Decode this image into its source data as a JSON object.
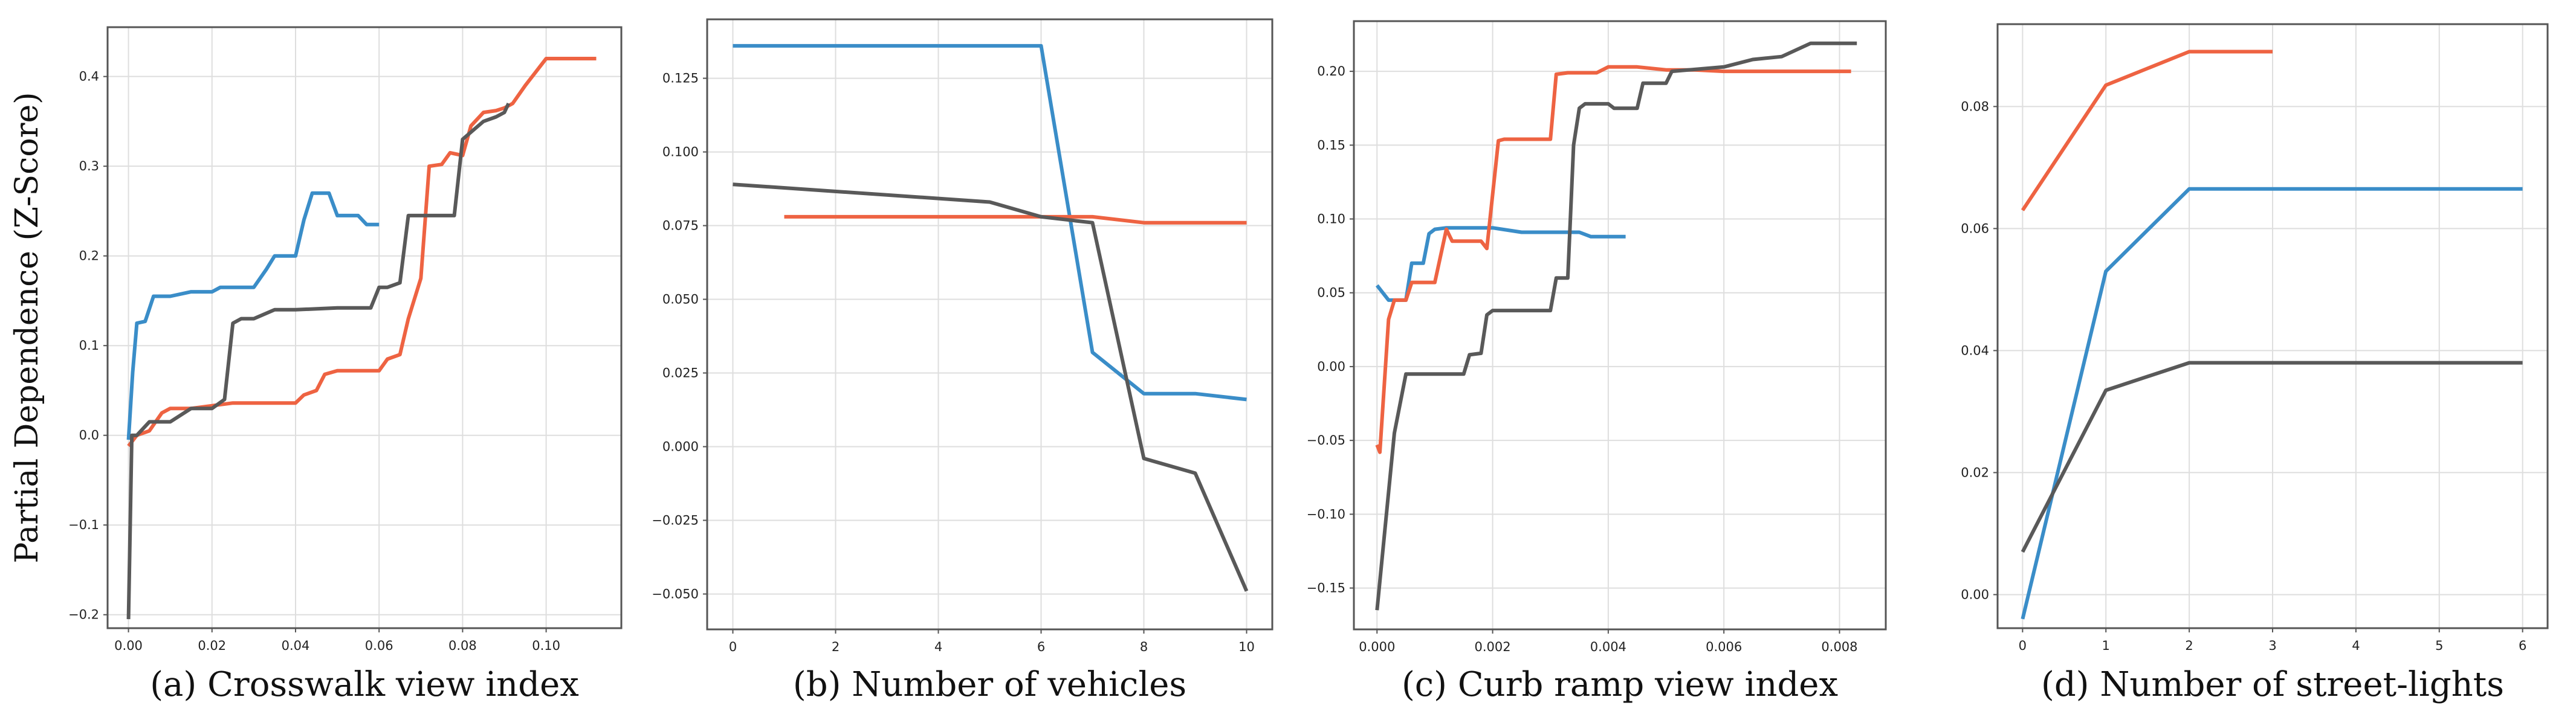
{
  "colors": {
    "blue": "#3a8dc8",
    "orange": "#ee6342",
    "gray": "#595959",
    "grid": "#dedede",
    "frame": "#555555"
  },
  "chart_data": [
    {
      "type": "line",
      "title": "",
      "xlabel": "(a) Crosswalk view index",
      "ylabel": "Partial Dependence (Z-Score)",
      "xlim": [
        -0.005,
        0.118
      ],
      "ylim": [
        -0.215,
        0.455
      ],
      "xticks": [
        0.0,
        0.02,
        0.04,
        0.06,
        0.08,
        0.1
      ],
      "xtick_labels": [
        "0.00",
        "0.02",
        "0.04",
        "0.06",
        "0.08",
        "0.10"
      ],
      "yticks": [
        -0.2,
        -0.1,
        0.0,
        0.1,
        0.2,
        0.3,
        0.4
      ],
      "ytick_labels": [
        "−0.2",
        "−0.1",
        "0.0",
        "0.1",
        "0.2",
        "0.3",
        "0.4"
      ],
      "series": [
        {
          "name": "blue",
          "color": "#3a8dc8",
          "x": [
            0.0,
            0.001,
            0.002,
            0.004,
            0.006,
            0.008,
            0.01,
            0.015,
            0.02,
            0.022,
            0.03,
            0.033,
            0.035,
            0.04,
            0.042,
            0.044,
            0.048,
            0.05,
            0.055,
            0.057,
            0.06
          ],
          "y": [
            -0.005,
            0.07,
            0.125,
            0.127,
            0.155,
            0.155,
            0.155,
            0.16,
            0.16,
            0.165,
            0.165,
            0.185,
            0.2,
            0.2,
            0.24,
            0.27,
            0.27,
            0.245,
            0.245,
            0.235,
            0.235
          ]
        },
        {
          "name": "orange",
          "color": "#ee6342",
          "x": [
            0.0,
            0.002,
            0.005,
            0.008,
            0.01,
            0.015,
            0.02,
            0.025,
            0.03,
            0.04,
            0.042,
            0.045,
            0.047,
            0.05,
            0.055,
            0.06,
            0.062,
            0.065,
            0.067,
            0.07,
            0.072,
            0.075,
            0.077,
            0.08,
            0.082,
            0.085,
            0.088,
            0.09,
            0.092,
            0.095,
            0.1,
            0.112
          ],
          "y": [
            -0.012,
            0.0,
            0.005,
            0.025,
            0.03,
            0.03,
            0.033,
            0.036,
            0.036,
            0.036,
            0.045,
            0.05,
            0.068,
            0.072,
            0.072,
            0.072,
            0.085,
            0.09,
            0.13,
            0.175,
            0.3,
            0.302,
            0.315,
            0.312,
            0.345,
            0.36,
            0.362,
            0.365,
            0.37,
            0.39,
            0.42,
            0.42
          ]
        },
        {
          "name": "gray",
          "color": "#595959",
          "x": [
            0.0,
            0.0008,
            0.002,
            0.005,
            0.01,
            0.015,
            0.02,
            0.023,
            0.025,
            0.027,
            0.03,
            0.035,
            0.04,
            0.05,
            0.058,
            0.06,
            0.062,
            0.065,
            0.067,
            0.07,
            0.075,
            0.078,
            0.08,
            0.085,
            0.088,
            0.09,
            0.091
          ],
          "y": [
            -0.205,
            0.0,
            0.0,
            0.015,
            0.015,
            0.03,
            0.03,
            0.04,
            0.125,
            0.13,
            0.13,
            0.14,
            0.14,
            0.142,
            0.142,
            0.165,
            0.165,
            0.17,
            0.245,
            0.245,
            0.245,
            0.245,
            0.33,
            0.35,
            0.355,
            0.36,
            0.37
          ]
        }
      ]
    },
    {
      "type": "line",
      "title": "",
      "xlabel": "(b)  Number of vehicles",
      "ylabel": "",
      "xlim": [
        -0.5,
        10.5
      ],
      "ylim": [
        -0.062,
        0.145
      ],
      "xticks": [
        0,
        2,
        4,
        6,
        8,
        10
      ],
      "xtick_labels": [
        "0",
        "2",
        "4",
        "6",
        "8",
        "10"
      ],
      "yticks": [
        -0.05,
        -0.025,
        0.0,
        0.025,
        0.05,
        0.075,
        0.1,
        0.125
      ],
      "ytick_labels": [
        "−0.050",
        "−0.025",
        "0.000",
        "0.025",
        "0.050",
        "0.075",
        "0.100",
        "0.125"
      ],
      "series": [
        {
          "name": "blue",
          "color": "#3a8dc8",
          "x": [
            0,
            6,
            7,
            8,
            9,
            10
          ],
          "y": [
            0.136,
            0.136,
            0.032,
            0.018,
            0.018,
            0.016
          ]
        },
        {
          "name": "orange",
          "color": "#ee6342",
          "x": [
            1,
            6,
            7,
            8,
            9,
            10
          ],
          "y": [
            0.078,
            0.078,
            0.078,
            0.076,
            0.076,
            0.076
          ]
        },
        {
          "name": "gray",
          "color": "#595959",
          "x": [
            0,
            5,
            6,
            7,
            8,
            9,
            10
          ],
          "y": [
            0.089,
            0.083,
            0.078,
            0.076,
            -0.004,
            -0.009,
            -0.049
          ]
        }
      ]
    },
    {
      "type": "line",
      "title": "",
      "xlabel": "(c)  Curb ramp view index",
      "ylabel": "",
      "xlim": [
        -0.0004,
        0.0088
      ],
      "ylim": [
        -0.178,
        0.234
      ],
      "xticks": [
        0.0,
        0.002,
        0.004,
        0.006,
        0.008
      ],
      "xtick_labels": [
        "0.000",
        "0.002",
        "0.004",
        "0.006",
        "0.008"
      ],
      "yticks": [
        -0.15,
        -0.1,
        -0.05,
        0.0,
        0.05,
        0.1,
        0.15,
        0.2
      ],
      "ytick_labels": [
        "−0.15",
        "−0.10",
        "−0.05",
        "0.00",
        "0.05",
        "0.10",
        "0.15",
        "0.20"
      ],
      "series": [
        {
          "name": "blue",
          "color": "#3a8dc8",
          "x": [
            0.0,
            0.0002,
            0.0005,
            0.0006,
            0.0008,
            0.0009,
            0.001,
            0.0012,
            0.0015,
            0.002,
            0.0025,
            0.003,
            0.0035,
            0.0037,
            0.004,
            0.0043
          ],
          "y": [
            0.055,
            0.045,
            0.045,
            0.07,
            0.07,
            0.09,
            0.093,
            0.094,
            0.094,
            0.094,
            0.091,
            0.091,
            0.091,
            0.088,
            0.088,
            0.088
          ]
        },
        {
          "name": "orange",
          "color": "#ee6342",
          "x": [
            0.0,
            5e-05,
            0.0002,
            0.0003,
            0.0005,
            0.0006,
            0.001,
            0.0012,
            0.0013,
            0.0018,
            0.0019,
            0.0021,
            0.0022,
            0.0025,
            0.003,
            0.0031,
            0.0033,
            0.0038,
            0.004,
            0.0045,
            0.005,
            0.0055,
            0.006,
            0.0065,
            0.007,
            0.0075,
            0.0082
          ],
          "y": [
            -0.053,
            -0.058,
            0.032,
            0.045,
            0.045,
            0.057,
            0.057,
            0.093,
            0.085,
            0.085,
            0.08,
            0.153,
            0.154,
            0.154,
            0.154,
            0.198,
            0.199,
            0.199,
            0.203,
            0.203,
            0.201,
            0.201,
            0.2,
            0.2,
            0.2,
            0.2,
            0.2
          ]
        },
        {
          "name": "gray",
          "color": "#595959",
          "x": [
            0.0,
            0.0003,
            0.0005,
            0.001,
            0.0015,
            0.0016,
            0.0018,
            0.0019,
            0.002,
            0.0022,
            0.003,
            0.0031,
            0.0033,
            0.0034,
            0.0035,
            0.0036,
            0.004,
            0.0041,
            0.0045,
            0.0046,
            0.005,
            0.0051,
            0.006,
            0.0065,
            0.007,
            0.0075,
            0.0083
          ],
          "y": [
            -0.165,
            -0.045,
            -0.005,
            -0.005,
            -0.005,
            0.008,
            0.009,
            0.035,
            0.038,
            0.038,
            0.038,
            0.06,
            0.06,
            0.15,
            0.175,
            0.178,
            0.178,
            0.175,
            0.175,
            0.192,
            0.192,
            0.2,
            0.203,
            0.208,
            0.21,
            0.219,
            0.219
          ]
        }
      ]
    },
    {
      "type": "line",
      "title": "",
      "xlabel": "(d) Number of street-lights",
      "ylabel": "",
      "xlim": [
        -0.3,
        6.3
      ],
      "ylim": [
        -0.0055,
        0.0935
      ],
      "xticks": [
        0,
        1,
        2,
        3,
        4,
        5,
        6
      ],
      "xtick_labels": [
        "0",
        "1",
        "2",
        "3",
        "4",
        "5",
        "6"
      ],
      "yticks": [
        0.0,
        0.02,
        0.04,
        0.06,
        0.08
      ],
      "ytick_labels": [
        "0.00",
        "0.02",
        "0.04",
        "0.06",
        "0.08"
      ],
      "series": [
        {
          "name": "blue",
          "color": "#3a8dc8",
          "x": [
            0,
            1,
            2,
            3,
            4,
            5,
            6
          ],
          "y": [
            -0.004,
            0.053,
            0.0665,
            0.0665,
            0.0665,
            0.0665,
            0.0665
          ]
        },
        {
          "name": "orange",
          "color": "#ee6342",
          "x": [
            0,
            1,
            2,
            3
          ],
          "y": [
            0.063,
            0.0835,
            0.089,
            0.089
          ]
        },
        {
          "name": "gray",
          "color": "#595959",
          "x": [
            0,
            1,
            2,
            3,
            4,
            5,
            6
          ],
          "y": [
            0.007,
            0.0335,
            0.038,
            0.038,
            0.038,
            0.038,
            0.038
          ]
        }
      ]
    }
  ]
}
